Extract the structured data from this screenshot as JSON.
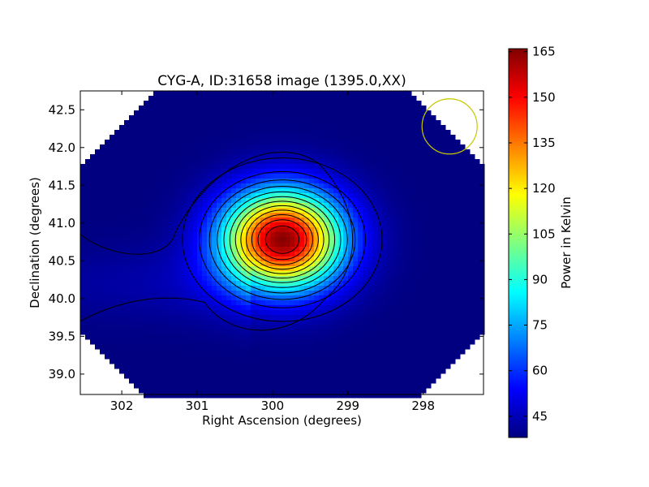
{
  "chart_data": {
    "type": "heatmap",
    "title": "CYG-A, ID:31658 image (1395.0,XX)",
    "xlabel": "Right Ascension (degrees)",
    "ylabel": "Declination (degrees)",
    "xlim": [
      302.55,
      297.2
    ],
    "ylim": [
      38.73,
      42.75
    ],
    "x_ticks": [
      302,
      301,
      300,
      299,
      298
    ],
    "y_ticks": [
      39.0,
      39.5,
      40.0,
      40.5,
      41.0,
      41.5,
      42.0,
      42.5
    ],
    "x_tick_labels": [
      "302",
      "301",
      "300",
      "299",
      "298"
    ],
    "y_tick_labels": [
      "39.0",
      "39.5",
      "40.0",
      "40.5",
      "41.0",
      "41.5",
      "42.0",
      "42.5"
    ],
    "source_peak": {
      "ra": 299.87,
      "dec": 40.78,
      "value": 165
    },
    "background_level": 38,
    "contour_levels": [
      45,
      55,
      65,
      75,
      85,
      95,
      105,
      115,
      125,
      135,
      145,
      155
    ],
    "beam_circle": {
      "ra": 297.65,
      "dec": 42.28,
      "color": "#c8c800"
    },
    "colorbar": {
      "label": "Power in Kelvin",
      "min": 38,
      "max": 166,
      "ticks": [
        45,
        60,
        75,
        90,
        105,
        120,
        135,
        150,
        165
      ],
      "tick_labels": [
        "45",
        "60",
        "75",
        "90",
        "105",
        "120",
        "135",
        "150",
        "165"
      ],
      "colormap": "jet"
    },
    "grid": false
  }
}
